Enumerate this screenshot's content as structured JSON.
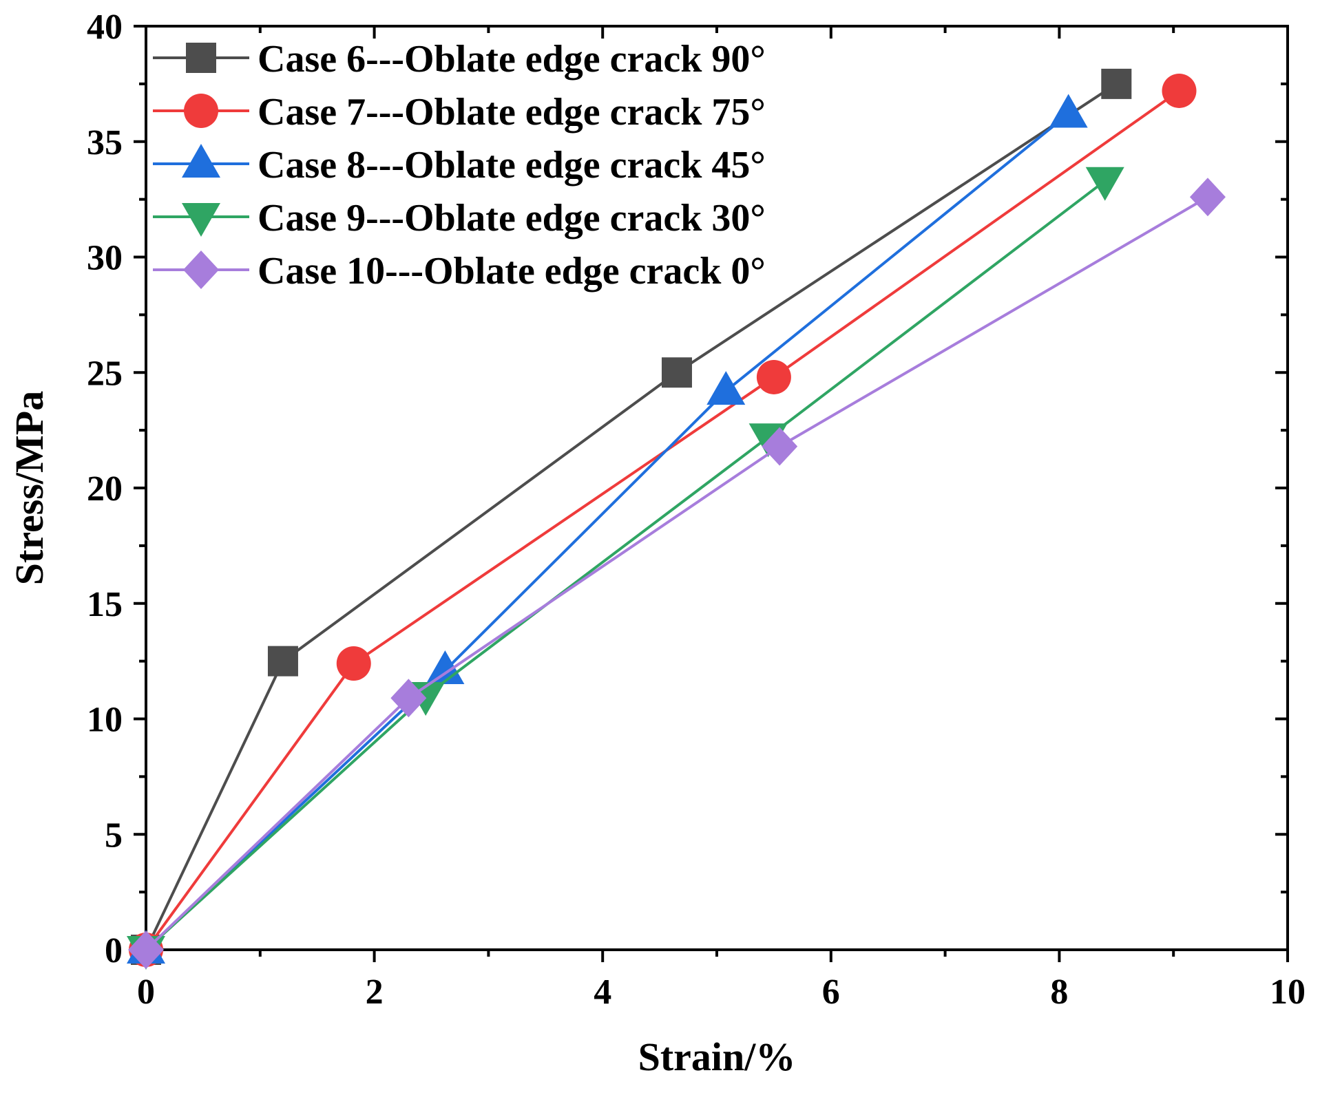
{
  "chart_data": {
    "type": "line",
    "title": "",
    "xlabel": "Strain/%",
    "ylabel": "Stress/MPa",
    "xlim": [
      0,
      10
    ],
    "ylim": [
      0,
      40
    ],
    "xticks": [
      0,
      2,
      4,
      6,
      8,
      10
    ],
    "yticks": [
      0,
      5,
      10,
      15,
      20,
      25,
      30,
      35,
      40
    ],
    "xtick_labels": [
      "0",
      "2",
      "4",
      "6",
      "8",
      "10"
    ],
    "ytick_labels": [
      "0",
      "5",
      "10",
      "15",
      "20",
      "25",
      "30",
      "35",
      "40"
    ],
    "grid": false,
    "legend_position": "top-left",
    "series": [
      {
        "name": "Case 6---Oblate edge crack 90°",
        "color": "#4d4d4d",
        "marker": "square",
        "x": [
          0,
          1.2,
          4.65,
          8.5
        ],
        "y": [
          0,
          12.5,
          25.0,
          37.5
        ]
      },
      {
        "name": "Case 7---Oblate edge crack 75°",
        "color": "#ef3b3b",
        "marker": "circle",
        "x": [
          0,
          1.82,
          5.5,
          9.05
        ],
        "y": [
          0,
          12.4,
          24.8,
          37.2
        ]
      },
      {
        "name": "Case 8---Oblate edge crack 45°",
        "color": "#1f6fdd",
        "marker": "triangle-up",
        "x": [
          0,
          2.62,
          5.08,
          8.08
        ],
        "y": [
          0,
          12.1,
          24.2,
          36.2
        ]
      },
      {
        "name": "Case 9---Oblate edge crack 30°",
        "color": "#2fa563",
        "marker": "triangle-down",
        "x": [
          0,
          2.45,
          5.45,
          8.4
        ],
        "y": [
          0,
          11.0,
          22.2,
          33.3
        ]
      },
      {
        "name": "Case 10---Oblate edge crack 0°",
        "color": "#a77ddc",
        "marker": "diamond",
        "x": [
          0,
          2.3,
          5.55,
          9.3
        ],
        "y": [
          0,
          10.9,
          21.8,
          32.6
        ]
      }
    ]
  }
}
